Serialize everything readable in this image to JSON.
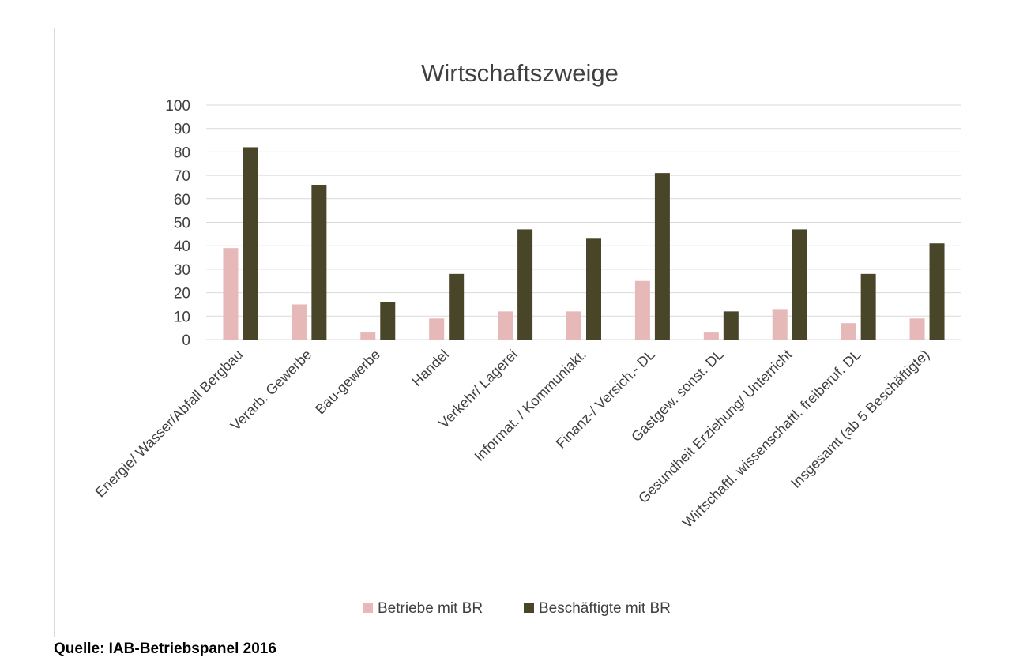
{
  "chart_data": {
    "type": "bar",
    "title": "Wirtschaftszweige",
    "categories": [
      "Energie/ Wasser/Abfall Bergbau",
      "Verarb. Gewerbe",
      "Bau-gewerbe",
      "Handel",
      "Verkehr/ Lagerei",
      "Informat. / Kommuniakt.",
      "Finanz-/ Versich.- DL",
      "Gastgew. sonst. DL",
      "Gesundheit Erziehung/ Unterricht",
      "Wirtschaftl. wissenschaftl. freiberuf. DL",
      "Insgesamt (ab 5 Beschäftigte)"
    ],
    "series": [
      {
        "name": "Betriebe mit BR",
        "color": "#e6b8b7",
        "values": [
          39,
          15,
          3,
          9,
          12,
          12,
          25,
          3,
          13,
          7,
          9
        ]
      },
      {
        "name": "Beschäftigte mit BR",
        "color": "#494529",
        "values": [
          82,
          66,
          16,
          28,
          47,
          43,
          71,
          12,
          47,
          28,
          41
        ]
      }
    ],
    "ylim": [
      0,
      100
    ],
    "yticks": [
      0,
      10,
      20,
      30,
      40,
      50,
      60,
      70,
      80,
      90,
      100
    ],
    "grid": true,
    "legend_position": "bottom"
  },
  "source": "Quelle: IAB-Betriebspanel 2016"
}
